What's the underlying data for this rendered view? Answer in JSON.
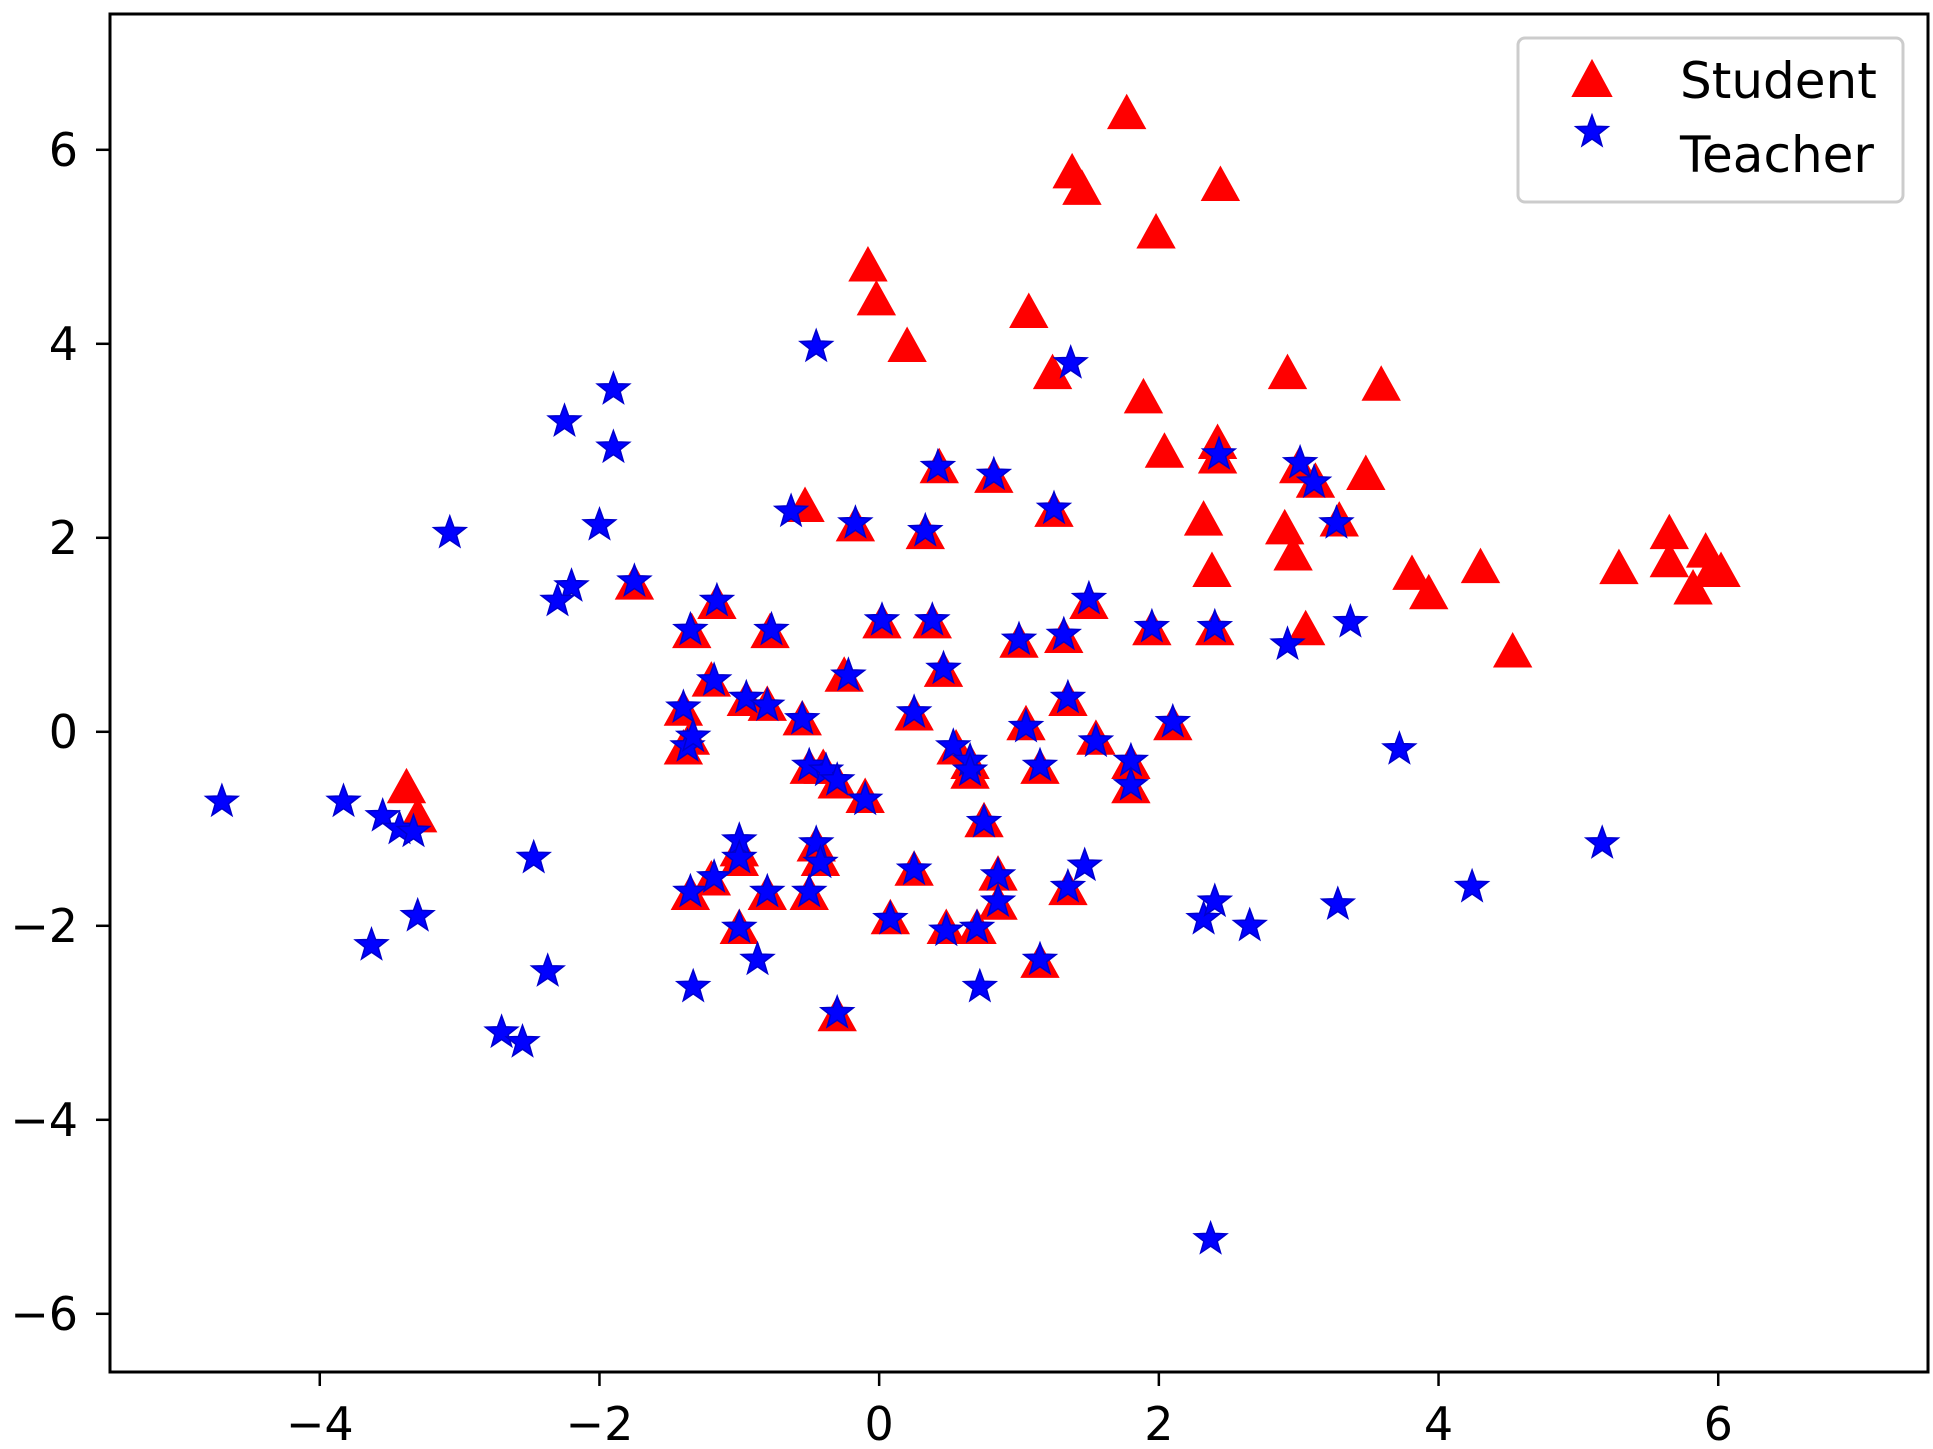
{
  "chart_data": {
    "type": "scatter",
    "title": "",
    "xlabel": "",
    "ylabel": "",
    "xlim": [
      -5.5,
      7.5
    ],
    "ylim": [
      -6.6,
      7.4
    ],
    "xticks": [
      -4,
      -2,
      0,
      2,
      4,
      6
    ],
    "yticks": [
      -6,
      -4,
      -2,
      0,
      2,
      4,
      6
    ],
    "xtick_labels": [
      "−4",
      "−2",
      "0",
      "2",
      "4",
      "6"
    ],
    "ytick_labels": [
      "−6",
      "−4",
      "−2",
      "0",
      "2",
      "4",
      "6"
    ],
    "grid": false,
    "legend": {
      "position": "top-right",
      "entries": [
        "Student",
        "Teacher"
      ]
    },
    "series": [
      {
        "name": "Student",
        "marker": "triangle",
        "color": "#ff0000",
        "points": [
          [
            1.77,
            6.35
          ],
          [
            1.38,
            5.74
          ],
          [
            1.45,
            5.57
          ],
          [
            2.44,
            5.61
          ],
          [
            1.98,
            5.12
          ],
          [
            -0.08,
            4.78
          ],
          [
            -0.02,
            4.43
          ],
          [
            0.2,
            3.95
          ],
          [
            1.07,
            4.3
          ],
          [
            1.24,
            3.67
          ],
          [
            1.89,
            3.42
          ],
          [
            2.04,
            2.86
          ],
          [
            2.42,
            2.95
          ],
          [
            2.42,
            2.8
          ],
          [
            2.92,
            3.67
          ],
          [
            3.59,
            3.55
          ],
          [
            3.48,
            2.63
          ],
          [
            3.0,
            2.7
          ],
          [
            3.12,
            2.55
          ],
          [
            3.29,
            2.15
          ],
          [
            2.32,
            2.16
          ],
          [
            2.9,
            2.07
          ],
          [
            2.96,
            1.8
          ],
          [
            2.38,
            1.63
          ],
          [
            3.05,
            1.03
          ],
          [
            3.81,
            1.6
          ],
          [
            3.93,
            1.4
          ],
          [
            4.3,
            1.67
          ],
          [
            4.53,
            0.8
          ],
          [
            5.29,
            1.66
          ],
          [
            5.65,
            2.02
          ],
          [
            5.65,
            1.73
          ],
          [
            5.82,
            1.45
          ],
          [
            5.91,
            1.83
          ],
          [
            5.95,
            1.63
          ],
          [
            6.02,
            1.63
          ],
          [
            -0.53,
            2.3
          ],
          [
            -0.17,
            2.1
          ],
          [
            0.43,
            2.7
          ],
          [
            0.82,
            2.6
          ],
          [
            1.25,
            2.25
          ],
          [
            0.33,
            2.02
          ],
          [
            -1.75,
            1.5
          ],
          [
            -1.34,
            1.0
          ],
          [
            -1.16,
            1.3
          ],
          [
            -0.78,
            1.0
          ],
          [
            0.02,
            1.1
          ],
          [
            0.38,
            1.1
          ],
          [
            1.0,
            0.9
          ],
          [
            1.32,
            0.95
          ],
          [
            1.5,
            1.3
          ],
          [
            1.95,
            1.03
          ],
          [
            2.4,
            1.03
          ],
          [
            0.46,
            0.6
          ],
          [
            -1.4,
            0.2
          ],
          [
            -1.2,
            0.5
          ],
          [
            -0.95,
            0.3
          ],
          [
            -0.8,
            0.25
          ],
          [
            -0.55,
            0.1
          ],
          [
            -0.25,
            0.55
          ],
          [
            0.25,
            0.15
          ],
          [
            -1.4,
            -0.2
          ],
          [
            -1.35,
            -0.1
          ],
          [
            -0.5,
            -0.4
          ],
          [
            -0.4,
            -0.4
          ],
          [
            -0.3,
            -0.55
          ],
          [
            -0.1,
            -0.7
          ],
          [
            0.55,
            -0.2
          ],
          [
            0.65,
            -0.35
          ],
          [
            0.65,
            -0.45
          ],
          [
            1.05,
            0.05
          ],
          [
            1.15,
            -0.4
          ],
          [
            1.35,
            0.3
          ],
          [
            1.55,
            -0.1
          ],
          [
            1.8,
            -0.35
          ],
          [
            1.8,
            -0.6
          ],
          [
            2.1,
            0.05
          ],
          [
            -3.38,
            -0.6
          ],
          [
            -3.3,
            -0.9
          ],
          [
            0.75,
            -0.95
          ],
          [
            -1.35,
            -1.7
          ],
          [
            -1.2,
            -1.55
          ],
          [
            -1.0,
            -1.25
          ],
          [
            -1.0,
            -1.35
          ],
          [
            -0.8,
            -1.7
          ],
          [
            -0.5,
            -1.7
          ],
          [
            -0.45,
            -1.2
          ],
          [
            -0.42,
            -1.35
          ],
          [
            0.25,
            -1.45
          ],
          [
            0.85,
            -1.5
          ],
          [
            -1.0,
            -2.05
          ],
          [
            0.08,
            -1.95
          ],
          [
            0.48,
            -2.05
          ],
          [
            0.7,
            -2.05
          ],
          [
            0.85,
            -1.8
          ],
          [
            1.35,
            -1.65
          ],
          [
            1.15,
            -2.4
          ],
          [
            -0.3,
            -2.95
          ]
        ]
      },
      {
        "name": "Teacher",
        "marker": "star",
        "color": "#0000ff",
        "points": [
          [
            -0.45,
            3.97
          ],
          [
            1.37,
            3.8
          ],
          [
            -1.9,
            3.53
          ],
          [
            -2.25,
            3.2
          ],
          [
            -1.9,
            2.93
          ],
          [
            -2.0,
            2.13
          ],
          [
            -3.07,
            2.05
          ],
          [
            -0.63,
            2.27
          ],
          [
            -0.17,
            2.15
          ],
          [
            0.42,
            2.73
          ],
          [
            0.33,
            2.07
          ],
          [
            0.82,
            2.65
          ],
          [
            1.25,
            2.3
          ],
          [
            2.43,
            2.86
          ],
          [
            3.01,
            2.77
          ],
          [
            3.11,
            2.57
          ],
          [
            3.27,
            2.15
          ],
          [
            -1.75,
            1.55
          ],
          [
            -2.2,
            1.5
          ],
          [
            -2.3,
            1.35
          ],
          [
            -1.35,
            1.05
          ],
          [
            -1.16,
            1.35
          ],
          [
            -0.77,
            1.05
          ],
          [
            0.02,
            1.15
          ],
          [
            0.38,
            1.15
          ],
          [
            1.0,
            0.95
          ],
          [
            1.32,
            1.0
          ],
          [
            1.5,
            1.37
          ],
          [
            1.95,
            1.08
          ],
          [
            2.4,
            1.08
          ],
          [
            2.92,
            0.9
          ],
          [
            3.37,
            1.13
          ],
          [
            0.46,
            0.65
          ],
          [
            -1.4,
            0.25
          ],
          [
            -1.18,
            0.53
          ],
          [
            -0.95,
            0.35
          ],
          [
            -0.8,
            0.27
          ],
          [
            -0.55,
            0.13
          ],
          [
            -0.22,
            0.58
          ],
          [
            0.25,
            0.2
          ],
          [
            -1.37,
            -0.15
          ],
          [
            -1.33,
            -0.05
          ],
          [
            -0.5,
            -0.35
          ],
          [
            -0.38,
            -0.4
          ],
          [
            -0.3,
            -0.5
          ],
          [
            -0.1,
            -0.7
          ],
          [
            0.53,
            -0.15
          ],
          [
            0.65,
            -0.3
          ],
          [
            0.65,
            -0.4
          ],
          [
            1.05,
            0.05
          ],
          [
            1.15,
            -0.35
          ],
          [
            1.35,
            0.35
          ],
          [
            1.55,
            -0.1
          ],
          [
            1.8,
            -0.3
          ],
          [
            1.8,
            -0.55
          ],
          [
            2.1,
            0.1
          ],
          [
            3.72,
            -0.18
          ],
          [
            -4.7,
            -0.72
          ],
          [
            -3.83,
            -0.72
          ],
          [
            -3.55,
            -0.87
          ],
          [
            -3.43,
            -1.0
          ],
          [
            -3.33,
            -1.03
          ],
          [
            0.75,
            -0.93
          ],
          [
            -2.47,
            -1.3
          ],
          [
            5.17,
            -1.15
          ],
          [
            -1.35,
            -1.65
          ],
          [
            -1.18,
            -1.5
          ],
          [
            -1.0,
            -1.12
          ],
          [
            -1.0,
            -1.3
          ],
          [
            -0.8,
            -1.65
          ],
          [
            -0.5,
            -1.65
          ],
          [
            -0.45,
            -1.15
          ],
          [
            -0.42,
            -1.35
          ],
          [
            0.25,
            -1.42
          ],
          [
            0.85,
            -1.48
          ],
          [
            1.47,
            -1.38
          ],
          [
            -1.0,
            -2.02
          ],
          [
            0.08,
            -1.93
          ],
          [
            0.48,
            -2.05
          ],
          [
            0.7,
            -2.02
          ],
          [
            0.85,
            -1.75
          ],
          [
            1.35,
            -1.6
          ],
          [
            2.32,
            -1.93
          ],
          [
            2.4,
            -1.75
          ],
          [
            2.65,
            -2.0
          ],
          [
            3.28,
            -1.78
          ],
          [
            4.24,
            -1.6
          ],
          [
            -3.63,
            -2.2
          ],
          [
            -3.3,
            -1.9
          ],
          [
            -0.87,
            -2.35
          ],
          [
            1.15,
            -2.35
          ],
          [
            -2.37,
            -2.47
          ],
          [
            -1.33,
            -2.63
          ],
          [
            0.72,
            -2.63
          ],
          [
            -0.3,
            -2.9
          ],
          [
            -2.7,
            -3.1
          ],
          [
            -2.55,
            -3.2
          ],
          [
            2.37,
            -5.23
          ]
        ]
      }
    ]
  }
}
